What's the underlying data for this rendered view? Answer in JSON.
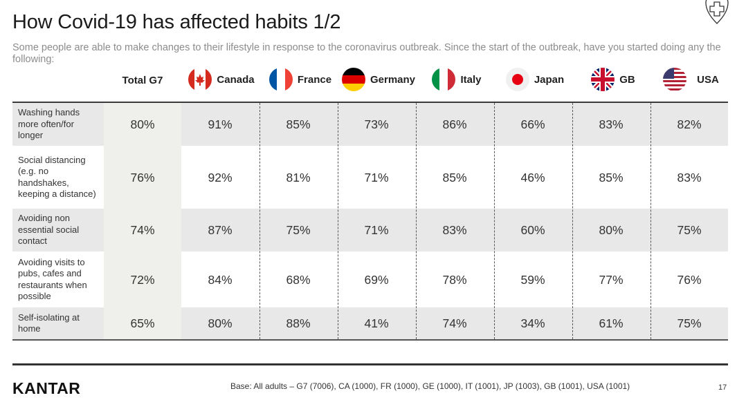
{
  "title": "How Covid-19 has affected habits 1/2",
  "subtitle": "Some people are able to make changes to their lifestyle in response to the coronavirus outbreak.  Since the start of the outbreak, have you started doing any the following:",
  "badge_icon": "cross-heart-icon",
  "chart_data": {
    "type": "table",
    "columns": [
      "Total G7",
      "Canada",
      "France",
      "Germany",
      "Italy",
      "Japan",
      "GB",
      "USA"
    ],
    "column_flags": [
      "",
      "canada-flag-icon",
      "france-flag-icon",
      "germany-flag-icon",
      "italy-flag-icon",
      "japan-flag-icon",
      "gb-flag-icon",
      "usa-flag-icon"
    ],
    "rows": [
      {
        "label": "Washing hands more often/for longer",
        "values": [
          "80%",
          "91%",
          "85%",
          "73%",
          "86%",
          "66%",
          "83%",
          "82%"
        ]
      },
      {
        "label": "Social distancing (e.g. no handshakes, keeping a distance)",
        "values": [
          "76%",
          "92%",
          "81%",
          "71%",
          "85%",
          "46%",
          "85%",
          "83%"
        ]
      },
      {
        "label": "Avoiding non essential social contact",
        "values": [
          "74%",
          "87%",
          "75%",
          "71%",
          "83%",
          "60%",
          "80%",
          "75%"
        ]
      },
      {
        "label": "Avoiding visits to pubs, cafes and restaurants when possible",
        "values": [
          "72%",
          "84%",
          "68%",
          "69%",
          "78%",
          "59%",
          "77%",
          "76%"
        ]
      },
      {
        "label": "Self-isolating at home",
        "values": [
          "65%",
          "80%",
          "88%",
          "41%",
          "74%",
          "34%",
          "61%",
          "75%"
        ]
      }
    ]
  },
  "footer": {
    "logo": "KANTAR",
    "base": "Base: All adults – G7 (7006), CA (1000), FR (1000), GE (1000), IT (1001), JP (1003), GB (1001), USA (1001)",
    "page": "17"
  }
}
